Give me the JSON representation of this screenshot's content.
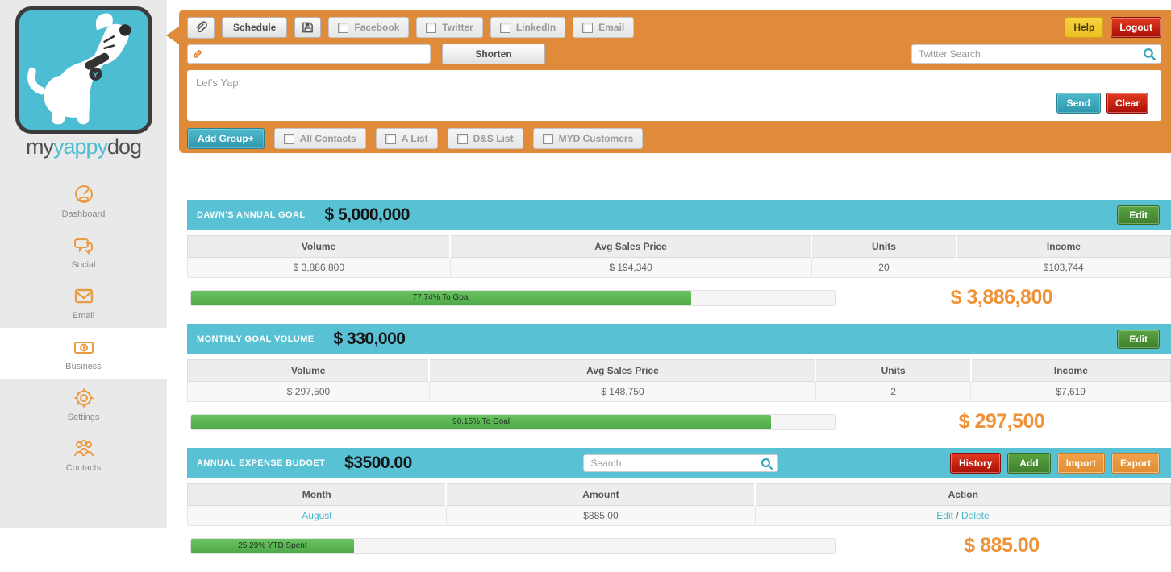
{
  "colors": {
    "orange_bar": "#e08b3a",
    "teal_panel": "#58c1d4",
    "teal_accent": "#45b6c9",
    "progress_green": "#5cb85c",
    "money_orange": "#ee9338",
    "danger_red": "#b61208",
    "help_yellow": "#f3ca32",
    "edit_green": "#4c9238",
    "sidebar_bg": "#e9e9e9"
  },
  "brand": {
    "my": "my",
    "yappy": "yappy",
    "dog": "dog"
  },
  "sidebar": {
    "items": [
      {
        "label": "Dashboard",
        "icon": "gauge-icon",
        "active": false
      },
      {
        "label": "Social",
        "icon": "chat-bubbles-icon",
        "active": false
      },
      {
        "label": "Email",
        "icon": "envelope-icon",
        "active": false
      },
      {
        "label": "Business",
        "icon": "banknote-icon",
        "active": true
      },
      {
        "label": "Settings",
        "icon": "gear-icon",
        "active": false
      },
      {
        "label": "Contacts",
        "icon": "people-icon",
        "active": false
      }
    ]
  },
  "composer": {
    "attach_icon": "paperclip-icon",
    "schedule_label": "Schedule",
    "save_icon": "floppy-disk-icon",
    "channels": [
      {
        "label": "Facebook",
        "checked": false
      },
      {
        "label": "Twitter",
        "checked": false
      },
      {
        "label": "LinkedIn",
        "checked": false
      },
      {
        "label": "Email",
        "checked": false
      }
    ],
    "help_label": "Help",
    "logout_label": "Logout",
    "url_icon": "chain-link-icon",
    "url_value": "",
    "shorten_label": "Shorten",
    "twitter_search_placeholder": "Twitter Search",
    "twitter_search_icon": "magnifier-icon",
    "message_placeholder": "Let's Yap!",
    "send_label": "Send",
    "clear_label": "Clear",
    "add_group_label": "Add Group+",
    "groups": [
      {
        "label": "All Contacts",
        "checked": false
      },
      {
        "label": "A List",
        "checked": false
      },
      {
        "label": "D&S List",
        "checked": false
      },
      {
        "label": "MYD Customers",
        "checked": false
      }
    ]
  },
  "panels": [
    {
      "title": "DAWN'S ANNUAL GOAL",
      "amount": "$ 5,000,000",
      "edit_label": "Edit",
      "columns": [
        "Volume",
        "Avg Sales Price",
        "Units",
        "Income"
      ],
      "row": [
        "$ 3,886,800",
        "$ 194,340",
        "20",
        "$103,744"
      ],
      "progress_pct": 77.74,
      "progress_label": "77.74% To Goal",
      "total": "$ 3,886,800"
    },
    {
      "title": "MONTHLY GOAL VOLUME",
      "amount": "$ 330,000",
      "edit_label": "Edit",
      "columns": [
        "Volume",
        "Avg Sales Price",
        "Units",
        "Income"
      ],
      "row": [
        "$ 297,500",
        "$ 148,750",
        "2",
        "$7,619"
      ],
      "progress_pct": 90.15,
      "progress_label": "90.15% To Goal",
      "total": "$ 297,500"
    },
    {
      "title": "ANNUAL EXPENSE BUDGET",
      "amount": "$3500.00",
      "search_placeholder": "Search",
      "search_icon": "magnifier-icon",
      "buttons": {
        "history": "History",
        "add": "Add",
        "import": "Import",
        "export": "Export"
      },
      "columns": [
        "Month",
        "Amount",
        "Action"
      ],
      "row": {
        "month": "August",
        "amount": "$885.00",
        "action_edit": "Edit",
        "action_separator": " / ",
        "action_delete": "Delete"
      },
      "progress_pct": 25.29,
      "progress_label": "25.29% YTD Spent",
      "total": "$ 885.00"
    }
  ]
}
